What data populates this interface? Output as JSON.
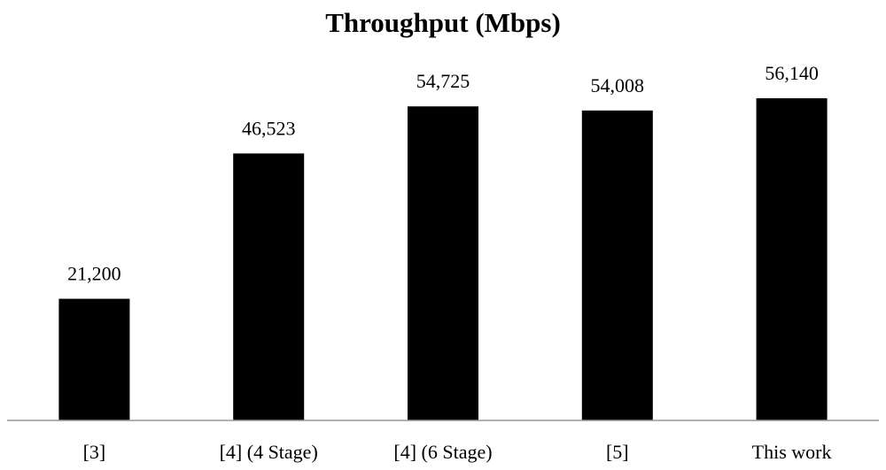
{
  "chart_data": {
    "type": "bar",
    "title": "Throughput (Mbps)",
    "categories": [
      "[3]",
      "[4] (4 Stage)",
      "[4] (6 Stage)",
      "[5]",
      "This work"
    ],
    "values": [
      21200,
      46523,
      54725,
      54008,
      56140
    ],
    "value_labels": [
      "21,200",
      "46,523",
      "54,725",
      "54,008",
      "56,140"
    ],
    "color": "#000000",
    "ylim": [
      0,
      60000
    ]
  }
}
